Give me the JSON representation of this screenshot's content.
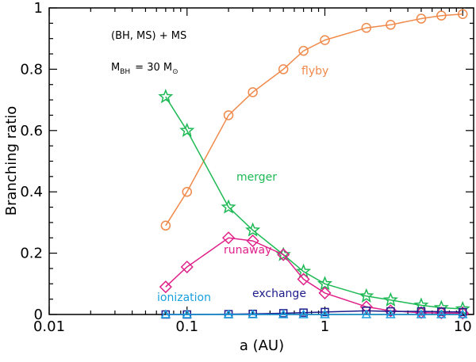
{
  "chart_data": {
    "type": "line",
    "xscale": "log",
    "xlabel": "a (AU)",
    "ylabel": "Branching ratio",
    "xlim": [
      0.01,
      12
    ],
    "ylim": [
      0,
      1
    ],
    "xticks": [
      {
        "value": 0.01,
        "label": "0.01"
      },
      {
        "value": 0.1,
        "label": "0.1"
      },
      {
        "value": 1,
        "label": "1"
      },
      {
        "value": 10,
        "label": "10"
      }
    ],
    "yticks": [
      {
        "value": 0,
        "label": "0"
      },
      {
        "value": 0.2,
        "label": "0.2"
      },
      {
        "value": 0.4,
        "label": "0.4"
      },
      {
        "value": 0.6,
        "label": "0.6"
      },
      {
        "value": 0.8,
        "label": "0.8"
      },
      {
        "value": 1,
        "label": "1"
      }
    ],
    "annotations": {
      "system": "(BH, MS) + MS",
      "mass_main": "M",
      "mass_sub": "BH",
      "mass_eq": "= 30 M",
      "mass_sun": "⊙"
    },
    "x": [
      0.07,
      0.1,
      0.2,
      0.3,
      0.5,
      0.7,
      1,
      2,
      3,
      5,
      7,
      10
    ],
    "series": [
      {
        "name": "flyby",
        "color": "#f08a4b",
        "marker": "circle",
        "values": [
          0.29,
          0.4,
          0.65,
          0.725,
          0.8,
          0.86,
          0.895,
          0.935,
          0.945,
          0.965,
          0.975,
          0.98
        ]
      },
      {
        "name": "merger",
        "color": "#1db954",
        "marker": "star",
        "values": [
          0.71,
          0.6,
          0.35,
          0.275,
          0.195,
          0.14,
          0.1,
          0.06,
          0.047,
          0.03,
          0.022,
          0.018
        ]
      },
      {
        "name": "runaway",
        "color": "#e0218a",
        "marker": "diamond",
        "values": [
          0.09,
          0.155,
          0.25,
          0.24,
          0.195,
          0.115,
          0.07,
          0.025,
          0.012,
          0.006,
          0.005,
          0.004
        ]
      },
      {
        "name": "exchange",
        "color": "#1c1c8a",
        "marker": "square",
        "values": [
          0.0,
          0.0,
          0.001,
          0.002,
          0.004,
          0.006,
          0.008,
          0.012,
          0.01,
          0.01,
          0.009,
          0.008
        ]
      },
      {
        "name": "ionization",
        "color": "#1a9fe0",
        "marker": "triangle",
        "values": [
          0.0,
          0.0,
          0.0,
          0.0,
          0.0,
          0.0,
          0.0,
          0.0,
          0.0,
          0.0,
          0.0,
          0.0
        ]
      }
    ]
  }
}
